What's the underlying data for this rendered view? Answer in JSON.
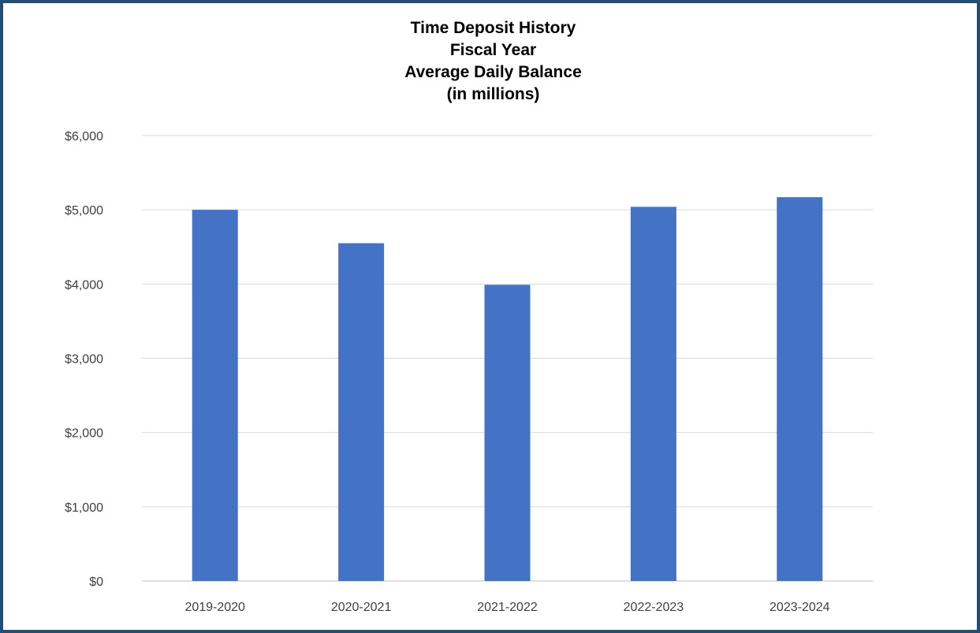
{
  "chart_data": {
    "type": "bar",
    "title_lines": [
      "Time Deposit History",
      "Fiscal Year",
      "Average Daily Balance",
      "(in millions)"
    ],
    "xlabel": "",
    "ylabel": "",
    "categories": [
      "2019-2020",
      "2020-2021",
      "2021-2022",
      "2022-2023",
      "2023-2024"
    ],
    "values": [
      5000,
      4550,
      3990,
      5040,
      5170
    ],
    "ylim": [
      0,
      6000
    ],
    "yticks": [
      0,
      1000,
      2000,
      3000,
      4000,
      5000,
      6000
    ],
    "ytick_labels": [
      "$0",
      "$1,000",
      "$2,000",
      "$3,000",
      "$4,000",
      "$5,000",
      "$6,000"
    ],
    "grid": true,
    "legend": "none",
    "bar_color": "#4472c4",
    "grid_color": "#d9d9d9",
    "border_color": "#1f4e79"
  }
}
